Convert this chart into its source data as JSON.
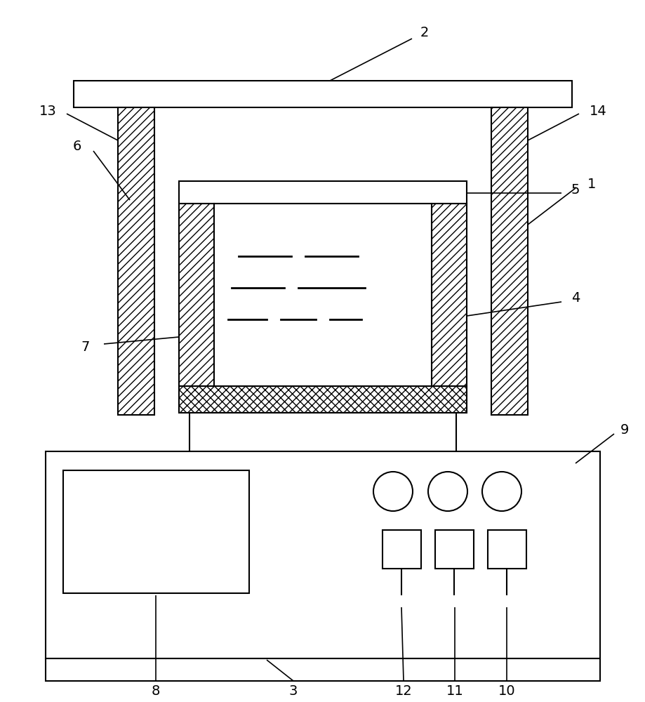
{
  "bg_color": "#ffffff",
  "lc": "#000000",
  "lw": 1.5,
  "fs": 14
}
